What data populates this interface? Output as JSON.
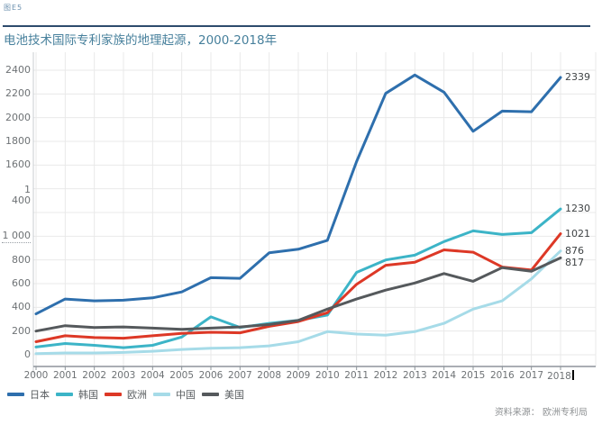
{
  "figure_label": "图E5",
  "title": "电池技术国际专利家族的地理起源，2000-2018年",
  "source": "资料来源： 欧洲专利局",
  "colors": {
    "title": "#47809c",
    "top_rule": "#2d4b6d",
    "grid": "#e9e9e9",
    "axis_bottom": "#8d949b",
    "axis_left": "#c8ccd0",
    "tick_text": "#6e7275"
  },
  "chart_data": {
    "type": "line",
    "title": "电池技术国际专利家族的地理起源，2000-2018年",
    "xlabel": "",
    "ylabel": "",
    "x": [
      2000,
      2001,
      2002,
      2003,
      2004,
      2005,
      2006,
      2007,
      2008,
      2009,
      2010,
      2011,
      2012,
      2013,
      2014,
      2015,
      2016,
      2017,
      2018
    ],
    "x_tick_labels": [
      "2000",
      "2001",
      "2002",
      "2003",
      "2004",
      "2005",
      "2006",
      "2007",
      "2008",
      "2009",
      "2010",
      "2011",
      "2012",
      "2013",
      "2014",
      "2015",
      "2016",
      "2017",
      "2018"
    ],
    "ylim": [
      0,
      2400
    ],
    "y_tick_interval": 200,
    "y_tick_labels": [
      "0",
      "200",
      "400",
      "600",
      "800",
      "1 000",
      "",
      "1\n400",
      "1600",
      "1800",
      "2000",
      "2200",
      "2400"
    ],
    "grid": true,
    "legend_position": "bottom-left",
    "series": [
      {
        "name": "日本",
        "color": "#2e6fad",
        "values": [
          345,
          470,
          455,
          460,
          480,
          530,
          650,
          645,
          860,
          890,
          965,
          1630,
          2205,
          2360,
          2215,
          1885,
          2055,
          2050,
          2339
        ],
        "end_label": "2339"
      },
      {
        "name": "韩国",
        "color": "#3cb4c7",
        "values": [
          65,
          95,
          80,
          60,
          80,
          150,
          320,
          230,
          265,
          290,
          335,
          695,
          800,
          840,
          955,
          1045,
          1015,
          1030,
          1230
        ],
        "end_label": "1230"
      },
      {
        "name": "欧洲",
        "color": "#dd3826",
        "values": [
          110,
          160,
          145,
          140,
          160,
          180,
          190,
          185,
          240,
          280,
          355,
          595,
          755,
          780,
          885,
          865,
          740,
          715,
          1021
        ],
        "end_label": "1021"
      },
      {
        "name": "中国",
        "color": "#a6dbe8",
        "values": [
          10,
          15,
          15,
          20,
          30,
          45,
          55,
          60,
          75,
          110,
          195,
          175,
          165,
          195,
          265,
          385,
          455,
          640,
          876
        ],
        "end_label": "876"
      },
      {
        "name": "美国",
        "color": "#55595c",
        "values": [
          200,
          245,
          230,
          235,
          225,
          215,
          225,
          235,
          255,
          290,
          385,
          470,
          545,
          605,
          685,
          620,
          735,
          705,
          817
        ],
        "end_label": "817"
      }
    ]
  }
}
